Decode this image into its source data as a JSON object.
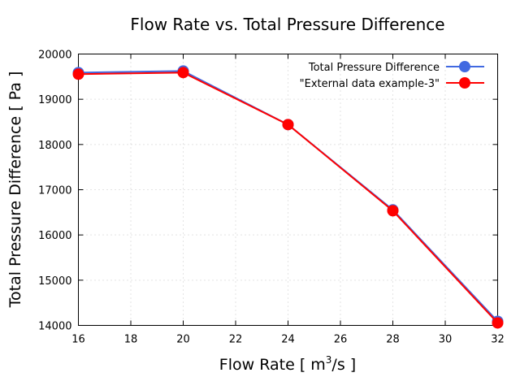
{
  "chart_data": {
    "type": "line",
    "title": "Flow Rate vs. Total Pressure Difference",
    "xlabel": "Flow Rate [ m",
    "xlabel_sup": "3",
    "xlabel_suffix": "/s ]",
    "ylabel": "Total Pressure Difference [ Pa ]",
    "xlim": [
      16,
      32
    ],
    "ylim": [
      14000,
      20000
    ],
    "xticks": [
      16,
      18,
      20,
      22,
      24,
      26,
      28,
      30,
      32
    ],
    "yticks": [
      14000,
      15000,
      16000,
      17000,
      18000,
      19000,
      20000
    ],
    "grid": true,
    "legend_position": "top-right",
    "x": [
      16,
      20,
      24,
      28,
      32
    ],
    "series": [
      {
        "name": "Total Pressure Difference",
        "color": "#4169e1",
        "marker": "circle",
        "values": [
          19590,
          19625,
          18440,
          16555,
          14090
        ]
      },
      {
        "name": "\"External data example-3\"",
        "color": "#ff0000",
        "marker": "circle",
        "values": [
          19555,
          19590,
          18440,
          16535,
          14055
        ]
      }
    ]
  }
}
